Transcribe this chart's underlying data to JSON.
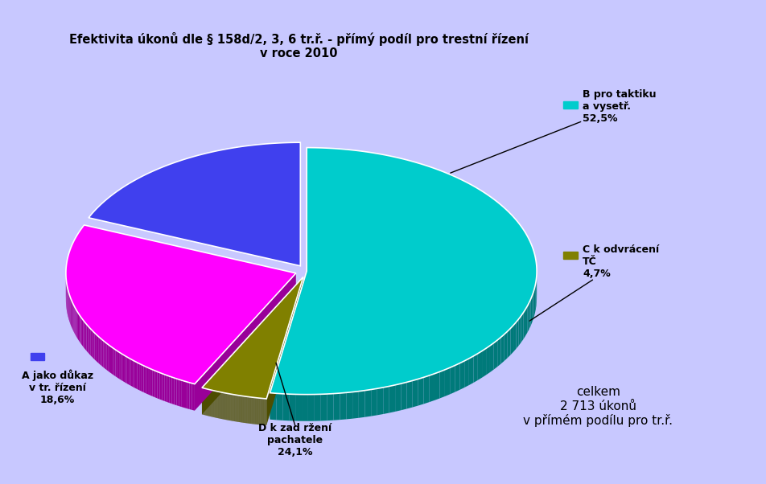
{
  "title_line1": "Efektivita úkonů dle § 158d/2, 3, 6 tr.ř. - přímý podíl pro trestní řízení",
  "title_line2": "v roce 2010",
  "slices": [
    52.5,
    4.7,
    24.1,
    18.6
  ],
  "colors": [
    "#00CCCC",
    "#808000",
    "#FF00FF",
    "#4040EE"
  ],
  "explode": [
    0.0,
    0.05,
    0.05,
    0.05
  ],
  "startangle": 90,
  "background_color": "#C8C8FF",
  "title_bg_color": "#FFB6C8",
  "title_border_color": "#00008B",
  "box_bg_color": "#FFB6C8",
  "box_border_color": "#9900CC",
  "box_text_line1": "celkem",
  "box_text_line2": "2 713 úkonů",
  "box_text_line3": "v přímém podílu pro tr.ř.",
  "ann_b_line1": "B pro taktiku",
  "ann_b_line2": "a vysetř.",
  "ann_b_line3": "52,5%",
  "ann_c_line1": "C k odvrácení",
  "ann_c_line2": "TČ",
  "ann_c_line3": "4,7%",
  "leg_d_line1": "D k zad ržení",
  "leg_d_line2": "pachatele",
  "leg_d_line3": "24,1%",
  "leg_a_line1": "A jako důkaz",
  "leg_a_line2": "v tr. řízení",
  "leg_a_line3": "18,6%",
  "leg_c_square": "C k odvrácení TČ",
  "leg_b_square": "B pro taktiku a vysetř."
}
